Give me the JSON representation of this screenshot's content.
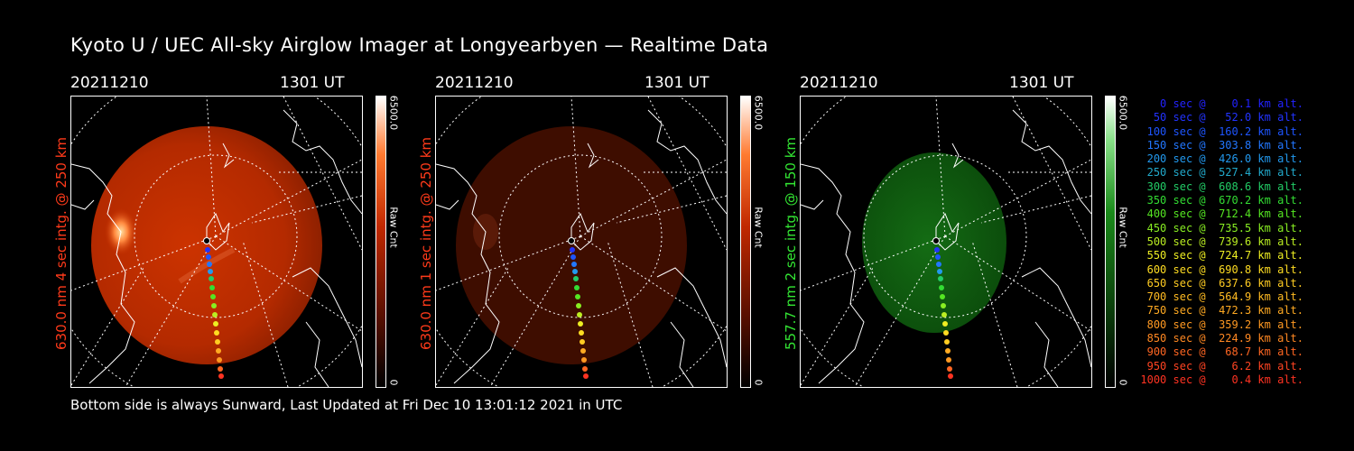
{
  "title": "Kyoto U / UEC All-sky Airglow Imager at Longyearbyen — Realtime Data",
  "footer": "Bottom side is always Sunward, Last Updated at Fri Dec 10 13:01:12 2021 in UTC",
  "panels": [
    {
      "date": "20211210",
      "time": "1301 UT",
      "side_label": "630.0 nm 4 sec intg. @ 250 km",
      "cmax": "6500.0",
      "cunit": "Raw Cnt",
      "cmin": "0",
      "label_color": "#ff3a1a"
    },
    {
      "date": "20211210",
      "time": "1301 UT",
      "side_label": "630.0 nm 1 sec intg. @ 250 km",
      "cmax": "6500.0",
      "cunit": "Raw Cnt",
      "cmin": "0",
      "label_color": "#ff3a1a"
    },
    {
      "date": "20211210",
      "time": "1301 UT",
      "side_label": "557.7 nm 2 sec intg. @ 150 km",
      "cmax": "6500.0",
      "cunit": "Raw Cnt",
      "cmin": "0",
      "label_color": "#33e633"
    }
  ],
  "legend": [
    {
      "text": "   0 sec @    0.1 km alt.",
      "color": "#2222ff"
    },
    {
      "text": "  50 sec @   52.0 km alt.",
      "color": "#2233ff"
    },
    {
      "text": " 100 sec @  160.2 km alt.",
      "color": "#1e55ff"
    },
    {
      "text": " 150 sec @  303.8 km alt.",
      "color": "#2277ff"
    },
    {
      "text": " 200 sec @  426.0 km alt.",
      "color": "#2299ee"
    },
    {
      "text": " 250 sec @  527.4 km alt.",
      "color": "#22aacc"
    },
    {
      "text": " 300 sec @  608.6 km alt.",
      "color": "#22cc66"
    },
    {
      "text": " 350 sec @  670.2 km alt.",
      "color": "#33dd33"
    },
    {
      "text": " 400 sec @  712.4 km alt.",
      "color": "#55e622"
    },
    {
      "text": " 450 sec @  735.5 km alt.",
      "color": "#88ee22"
    },
    {
      "text": " 500 sec @  739.6 km alt.",
      "color": "#bbee22"
    },
    {
      "text": " 550 sec @  724.7 km alt.",
      "color": "#eeee22"
    },
    {
      "text": " 600 sec @  690.8 km alt.",
      "color": "#ffdd22"
    },
    {
      "text": " 650 sec @  637.6 km alt.",
      "color": "#ffcc22"
    },
    {
      "text": " 700 sec @  564.9 km alt.",
      "color": "#ffbb22"
    },
    {
      "text": " 750 sec @  472.3 km alt.",
      "color": "#ffaa22"
    },
    {
      "text": " 800 sec @  359.2 km alt.",
      "color": "#ff9922"
    },
    {
      "text": " 850 sec @  224.9 km alt.",
      "color": "#ff8822"
    },
    {
      "text": " 900 sec @   68.7 km alt.",
      "color": "#ff6622"
    },
    {
      "text": " 950 sec @    6.2 km alt.",
      "color": "#ff4422"
    },
    {
      "text": "1000 sec @    0.4 km alt.",
      "color": "#ff3322"
    }
  ],
  "colors": {
    "red_glow": "#c02a00",
    "red_dim": "#3a0c00",
    "green_glow": "#0e5a0e"
  }
}
